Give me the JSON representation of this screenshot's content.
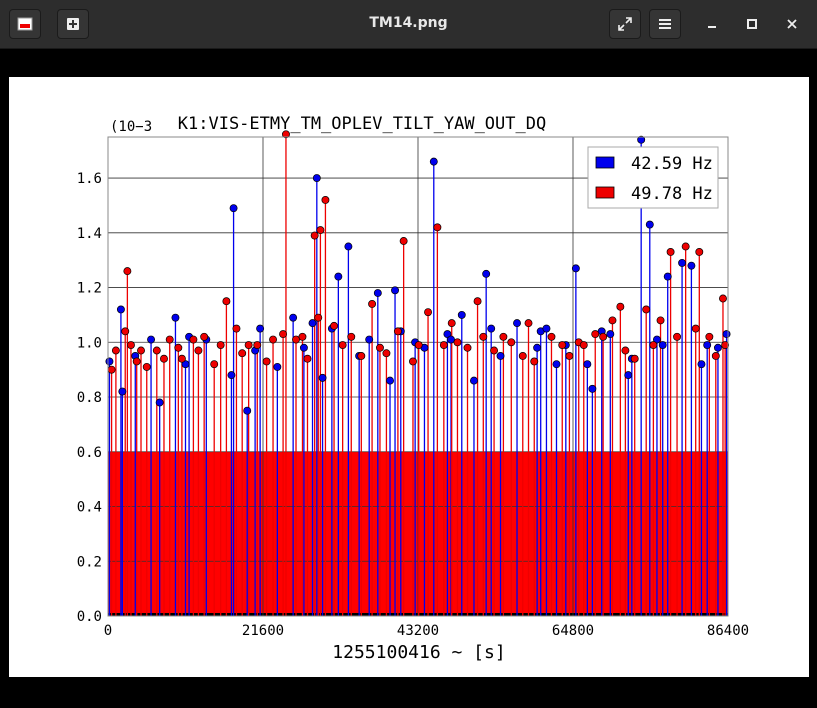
{
  "window": {
    "title": "TM14.png",
    "icons": [
      "image-app-icon",
      "new-tab-icon",
      "fullscreen-icon",
      "menu-icon",
      "minimize-icon",
      "maximize-icon",
      "close-icon"
    ]
  },
  "chart_data": {
    "type": "scatter",
    "style": "stem",
    "title": "K1:VIS-ETMY_TM_OPLEV_TILT_YAW_OUT_DQ",
    "xlabel": "1255100416 ~ [s]",
    "ylabel": "",
    "y_multiplier_label": "(10−3",
    "xlim": [
      0,
      86400
    ],
    "ylim": [
      0,
      1.75
    ],
    "x_ticks": [
      "0",
      "21600",
      "43200",
      "64800",
      "86400"
    ],
    "y_ticks": [
      "0.0",
      "0.2",
      "0.4",
      "0.6",
      "0.8",
      "1.0",
      "1.2",
      "1.4",
      "1.6"
    ],
    "grid": true,
    "legend_position": "top-right",
    "series": [
      {
        "name": "42.59 Hz",
        "color": "#0000ee",
        "x": [
          200,
          1800,
          2000,
          3800,
          6000,
          7200,
          9400,
          10800,
          11300,
          13700,
          17200,
          17500,
          19400,
          20500,
          21200,
          23600,
          25800,
          27300,
          28500,
          29100,
          29900,
          31200,
          32100,
          33500,
          35000,
          36400,
          37600,
          39300,
          40000,
          40800,
          42800,
          44100,
          45400,
          47300,
          47800,
          49300,
          51000,
          52700,
          53400,
          54700,
          57000,
          59800,
          60300,
          61100,
          62500,
          63800,
          65200,
          66800,
          67500,
          68800,
          70000,
          72500,
          73000,
          74300,
          75500,
          76500,
          77300,
          78000,
          80000,
          81300,
          82700,
          83500,
          85000,
          86200
        ],
        "values": [
          0.93,
          1.12,
          0.82,
          0.95,
          1.01,
          0.78,
          1.09,
          0.92,
          1.02,
          1.01,
          0.88,
          1.49,
          0.75,
          0.97,
          1.05,
          0.91,
          1.09,
          0.98,
          1.07,
          1.6,
          0.87,
          1.05,
          1.24,
          1.35,
          0.95,
          1.01,
          1.18,
          0.86,
          1.19,
          1.04,
          1.0,
          0.98,
          1.66,
          1.03,
          1.01,
          1.1,
          0.86,
          1.25,
          1.05,
          0.95,
          1.07,
          0.98,
          1.04,
          1.05,
          0.92,
          0.99,
          1.27,
          0.92,
          0.83,
          1.04,
          1.03,
          0.88,
          0.94,
          1.74,
          1.43,
          1.01,
          0.99,
          1.24,
          1.29,
          1.28,
          0.92,
          0.99,
          0.98,
          1.03
        ]
      },
      {
        "name": "49.78 Hz",
        "color": "#ee0000",
        "x": [
          500,
          1100,
          2400,
          2700,
          3200,
          4000,
          4600,
          5400,
          6800,
          7800,
          8600,
          9800,
          10300,
          11900,
          12600,
          13400,
          14800,
          15700,
          16500,
          17900,
          18700,
          19600,
          20800,
          22100,
          23000,
          24400,
          24800,
          26200,
          27100,
          27800,
          28800,
          29300,
          29600,
          30300,
          31500,
          32700,
          33900,
          35300,
          36800,
          37900,
          38800,
          40400,
          41200,
          42500,
          43300,
          44600,
          45900,
          46800,
          47900,
          48700,
          50100,
          51500,
          52300,
          53800,
          55100,
          56200,
          57800,
          58600,
          59400,
          61800,
          63300,
          64300,
          65600,
          66300,
          67900,
          69000,
          70300,
          71400,
          72100,
          73400,
          75000,
          76000,
          77000,
          78400,
          79300,
          80500,
          81900,
          82400,
          83800,
          84700,
          85700,
          86000
        ],
        "values": [
          0.9,
          0.97,
          1.04,
          1.26,
          0.99,
          0.93,
          0.97,
          0.91,
          0.97,
          0.94,
          1.01,
          0.98,
          0.94,
          1.01,
          0.97,
          1.02,
          0.92,
          0.99,
          1.15,
          1.05,
          0.96,
          0.99,
          0.99,
          0.93,
          1.01,
          1.03,
          1.76,
          1.01,
          1.02,
          0.94,
          1.39,
          1.09,
          1.41,
          1.52,
          1.06,
          0.99,
          1.02,
          0.95,
          1.14,
          0.98,
          0.96,
          1.04,
          1.37,
          0.93,
          0.99,
          1.11,
          1.42,
          0.99,
          1.07,
          1.0,
          0.98,
          1.15,
          1.02,
          0.97,
          1.02,
          1.0,
          0.95,
          1.07,
          0.93,
          1.02,
          0.99,
          0.95,
          1.0,
          0.99,
          1.03,
          1.02,
          1.08,
          1.13,
          0.97,
          0.94,
          1.12,
          0.99,
          1.08,
          1.33,
          1.02,
          1.35,
          1.05,
          1.33,
          1.02,
          0.95,
          1.16,
          0.99
        ]
      }
    ]
  }
}
